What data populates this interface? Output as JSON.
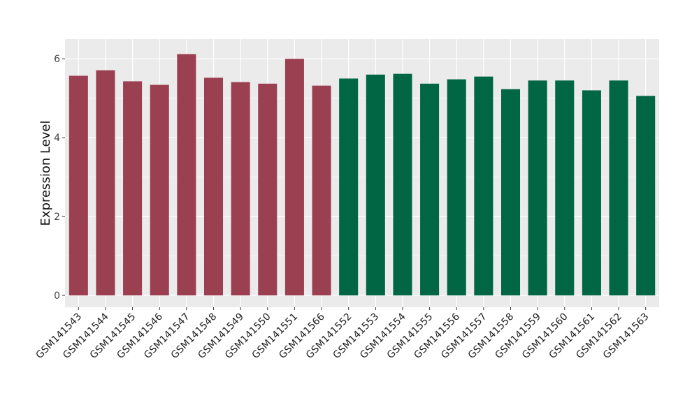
{
  "chart_data": {
    "type": "bar",
    "title": "",
    "xlabel": "",
    "ylabel": "Expression Level",
    "ylim": [
      -0.3,
      6.5
    ],
    "yticks": [
      0,
      2,
      4,
      6
    ],
    "grid": true,
    "legend": "none",
    "colors": {
      "group1": "#9B4050",
      "group2": "#006644",
      "panel": "#EBEBEB",
      "grid": "#FFFFFF"
    },
    "categories": [
      "GSM141543",
      "GSM141544",
      "GSM141545",
      "GSM141546",
      "GSM141547",
      "GSM141548",
      "GSM141549",
      "GSM141550",
      "GSM141551",
      "GSM141566",
      "GSM141552",
      "GSM141553",
      "GSM141554",
      "GSM141555",
      "GSM141556",
      "GSM141557",
      "GSM141558",
      "GSM141559",
      "GSM141560",
      "GSM141561",
      "GSM141562",
      "GSM141563"
    ],
    "values": [
      5.57,
      5.71,
      5.43,
      5.34,
      6.12,
      5.52,
      5.41,
      5.37,
      6.0,
      5.32,
      5.5,
      5.6,
      5.62,
      5.37,
      5.48,
      5.55,
      5.23,
      5.45,
      5.45,
      5.2,
      5.45,
      5.06
    ],
    "groups": [
      "group1",
      "group1",
      "group1",
      "group1",
      "group1",
      "group1",
      "group1",
      "group1",
      "group1",
      "group1",
      "group2",
      "group2",
      "group2",
      "group2",
      "group2",
      "group2",
      "group2",
      "group2",
      "group2",
      "group2",
      "group2",
      "group2"
    ]
  }
}
